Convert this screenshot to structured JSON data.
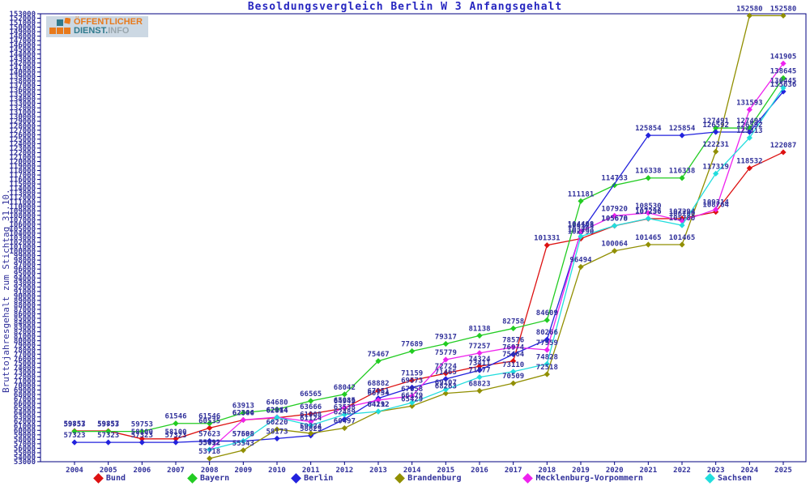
{
  "title": "Besoldungsvergleich Berlin W 3 Anfangsgehalt",
  "logo": {
    "line1": "ÖFFENTLICHER",
    "line2_a": "DIENST.",
    "line2_b": "INFO"
  },
  "y_axis_title": "Bruttojahresgehalt zum Stichtag 31.10.",
  "style": {
    "title_color": "#2626c0",
    "label_color": "#32329b",
    "axis_color": "#000080",
    "background": "#ffffff"
  },
  "chart_data": {
    "type": "line",
    "x": [
      2004,
      2005,
      2006,
      2007,
      2008,
      2009,
      2010,
      2011,
      2012,
      2013,
      2014,
      2015,
      2016,
      2017,
      2018,
      2019,
      2020,
      2021,
      2022,
      2023,
      2024,
      2025
    ],
    "xlabel": "",
    "ylabel": "Bruttojahresgehalt zum Stichtag 31.10.",
    "ylim": [
      53000,
      153000
    ],
    "y_tick_step": 1000,
    "grid": false,
    "point_labels": true,
    "legend_position": "bottom",
    "series": [
      {
        "name": "Bund",
        "color": "#dd1111",
        "values": [
          59857,
          59857,
          58100,
          58100,
          60535,
          62306,
          62814,
          63666,
          64949,
          68882,
          71159,
          72724,
          74324,
          75464,
          101331,
          102790,
          105670,
          107236,
          107294,
          108764,
          118532,
          122087
        ]
      },
      {
        "name": "Bayern",
        "color": "#22cc22",
        "values": [
          59753,
          59753,
          59753,
          61546,
          61546,
          63913,
          64680,
          66565,
          68042,
          75467,
          77689,
          79317,
          81138,
          82758,
          84609,
          111181,
          114733,
          116338,
          116338,
          127491,
          127491,
          138645
        ]
      },
      {
        "name": "Berlin",
        "color": "#2222dd",
        "values": [
          57323,
          57323,
          57323,
          57323,
          57623,
          57598,
          58173,
          58829,
          62489,
          67151,
          69573,
          71465,
          73411,
          76974,
          80266,
          104193,
          null,
          125854,
          125854,
          126592,
          126592,
          135636
        ]
      },
      {
        "name": "Brandenburg",
        "color": "#918f01",
        "values": [
          null,
          null,
          null,
          null,
          53718,
          55543,
          60220,
          59324,
          60497,
          64192,
          65429,
          68263,
          68823,
          70509,
          72518,
          96494,
          100064,
          101465,
          101465,
          122231,
          152580,
          152580
        ]
      },
      {
        "name": "Mecklenburg-Vorpommern",
        "color": "#ee22ee",
        "values": [
          null,
          null,
          null,
          null,
          55612,
          62344,
          62944,
          61908,
          65085,
          66754,
          67658,
          75779,
          77257,
          78576,
          77959,
          104408,
          107920,
          108530,
          106760,
          109314,
          131593,
          141905
        ]
      },
      {
        "name": "Sachsen",
        "color": "#22dddd",
        "values": [
          null,
          null,
          null,
          null,
          55692,
          57608,
          62874,
          61124,
          63538,
          64212,
          66179,
          69107,
          71877,
          73110,
          74828,
          103293,
          105678,
          107296,
          105780,
          117319,
          125313,
          136445
        ]
      }
    ]
  }
}
